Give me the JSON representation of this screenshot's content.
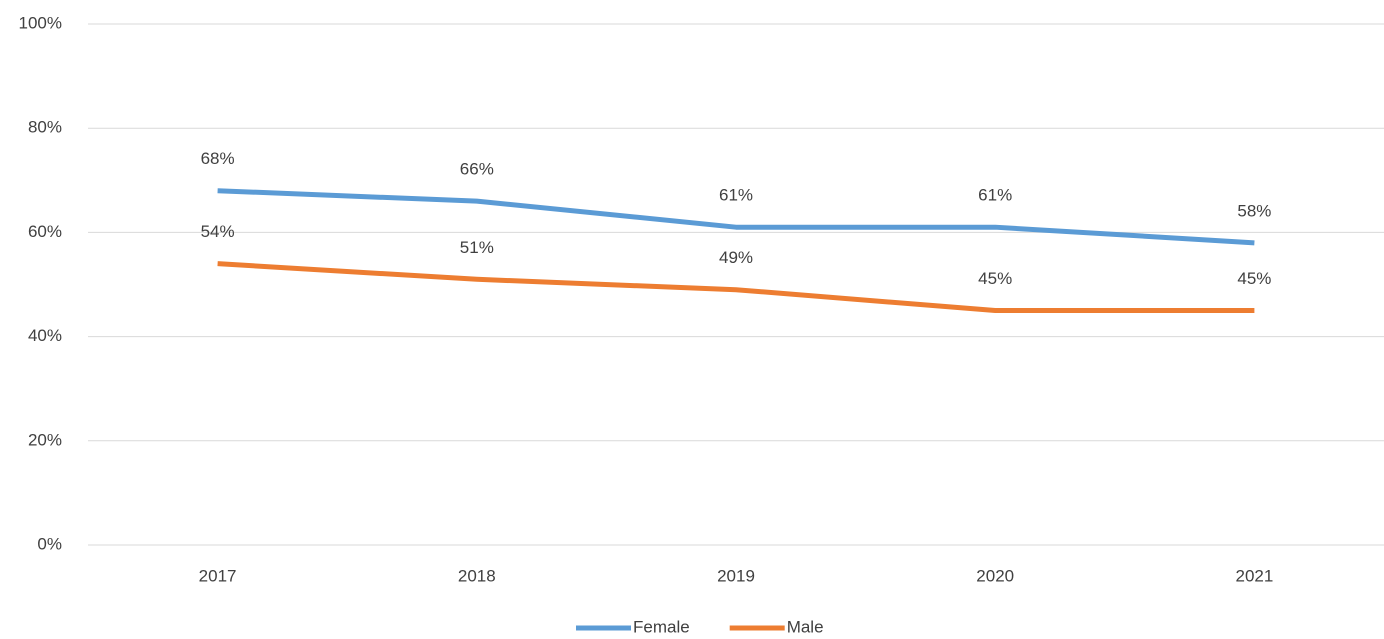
{
  "chart_data": {
    "type": "line",
    "categories": [
      "2017",
      "2018",
      "2019",
      "2020",
      "2021"
    ],
    "series": [
      {
        "name": "Female",
        "color": "#5b9bd5",
        "values": [
          68,
          66,
          61,
          61,
          58
        ],
        "value_labels": [
          "68%",
          "66%",
          "61%",
          "61%",
          "58%"
        ]
      },
      {
        "name": "Male",
        "color": "#ed7d31",
        "values": [
          54,
          51,
          49,
          45,
          45
        ],
        "value_labels": [
          "54%",
          "51%",
          "49%",
          "45%",
          "45%"
        ]
      }
    ],
    "ylim": [
      0,
      100
    ],
    "yticks": [
      {
        "value": 0,
        "label": "0%"
      },
      {
        "value": 20,
        "label": "20%"
      },
      {
        "value": 40,
        "label": "40%"
      },
      {
        "value": 60,
        "label": "60%"
      },
      {
        "value": 80,
        "label": "80%"
      },
      {
        "value": 100,
        "label": "100%"
      }
    ],
    "grid": true,
    "legend": "bottom"
  }
}
